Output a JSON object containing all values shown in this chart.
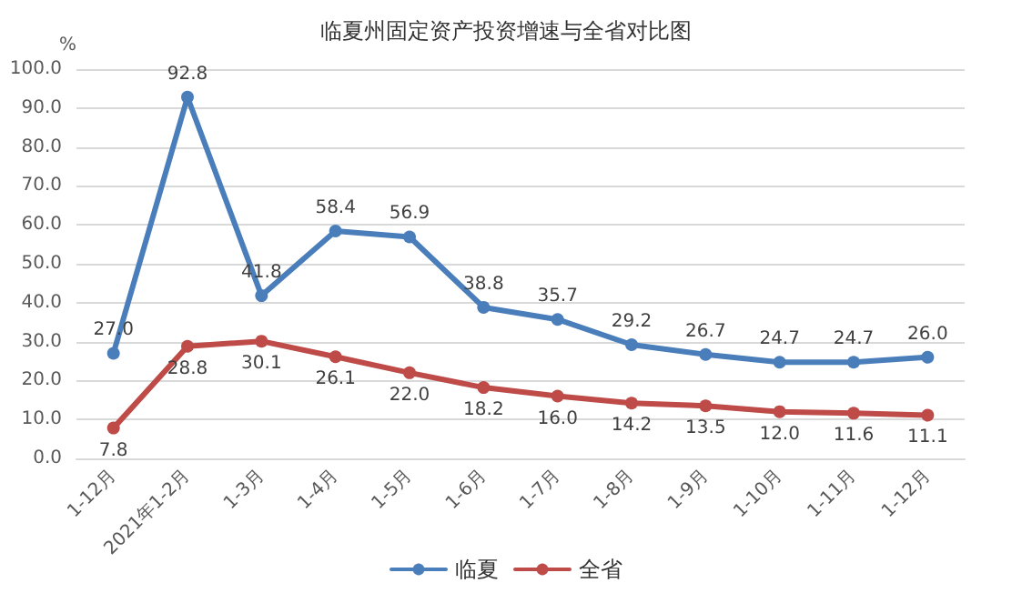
{
  "chart_data": {
    "type": "line",
    "title": "临夏州固定资产投资增速与全省对比图",
    "ylabel": "%",
    "categories": [
      "1-12月",
      "2021年1-2月",
      "1-3月",
      "1-4月",
      "1-5月",
      "1-6月",
      "1-7月",
      "1-8月",
      "1-9月",
      "1-10月",
      "1-11月",
      "1-12月"
    ],
    "series": [
      {
        "name": "临夏",
        "color": "#4a7ebb",
        "values": [
          27.0,
          92.8,
          41.8,
          58.4,
          56.9,
          38.8,
          35.7,
          29.2,
          26.7,
          24.7,
          24.7,
          26.0
        ],
        "value_labels": [
          "27.0",
          "92.8",
          "41.8",
          "58.4",
          "56.9",
          "38.8",
          "35.7",
          "29.2",
          "26.7",
          "24.7",
          "24.7",
          "26.0"
        ]
      },
      {
        "name": "全省",
        "color": "#be4b48",
        "values": [
          7.8,
          28.8,
          30.1,
          26.1,
          22.0,
          18.2,
          16.0,
          14.2,
          13.5,
          12.0,
          11.6,
          11.1
        ],
        "value_labels": [
          "7.8",
          "28.8",
          "30.1",
          "26.1",
          "22.0",
          "18.2",
          "16.0",
          "14.2",
          "13.5",
          "12.0",
          "11.6",
          "11.1"
        ]
      }
    ],
    "ylim": [
      0,
      100
    ],
    "yticks": [
      {
        "value": 0,
        "label": "0.0"
      },
      {
        "value": 10,
        "label": "10.0"
      },
      {
        "value": 20,
        "label": "20.0"
      },
      {
        "value": 30,
        "label": "30.0"
      },
      {
        "value": 40,
        "label": "40.0"
      },
      {
        "value": 50,
        "label": "50.0"
      },
      {
        "value": 60,
        "label": "60.0"
      },
      {
        "value": 70,
        "label": "70.0"
      },
      {
        "value": 80,
        "label": "80.0"
      },
      {
        "value": 90,
        "label": "90.0"
      },
      {
        "value": 100,
        "label": "100.0"
      }
    ],
    "grid": "y",
    "legend": "bottom",
    "marker": "circle",
    "line_style": "solid"
  }
}
